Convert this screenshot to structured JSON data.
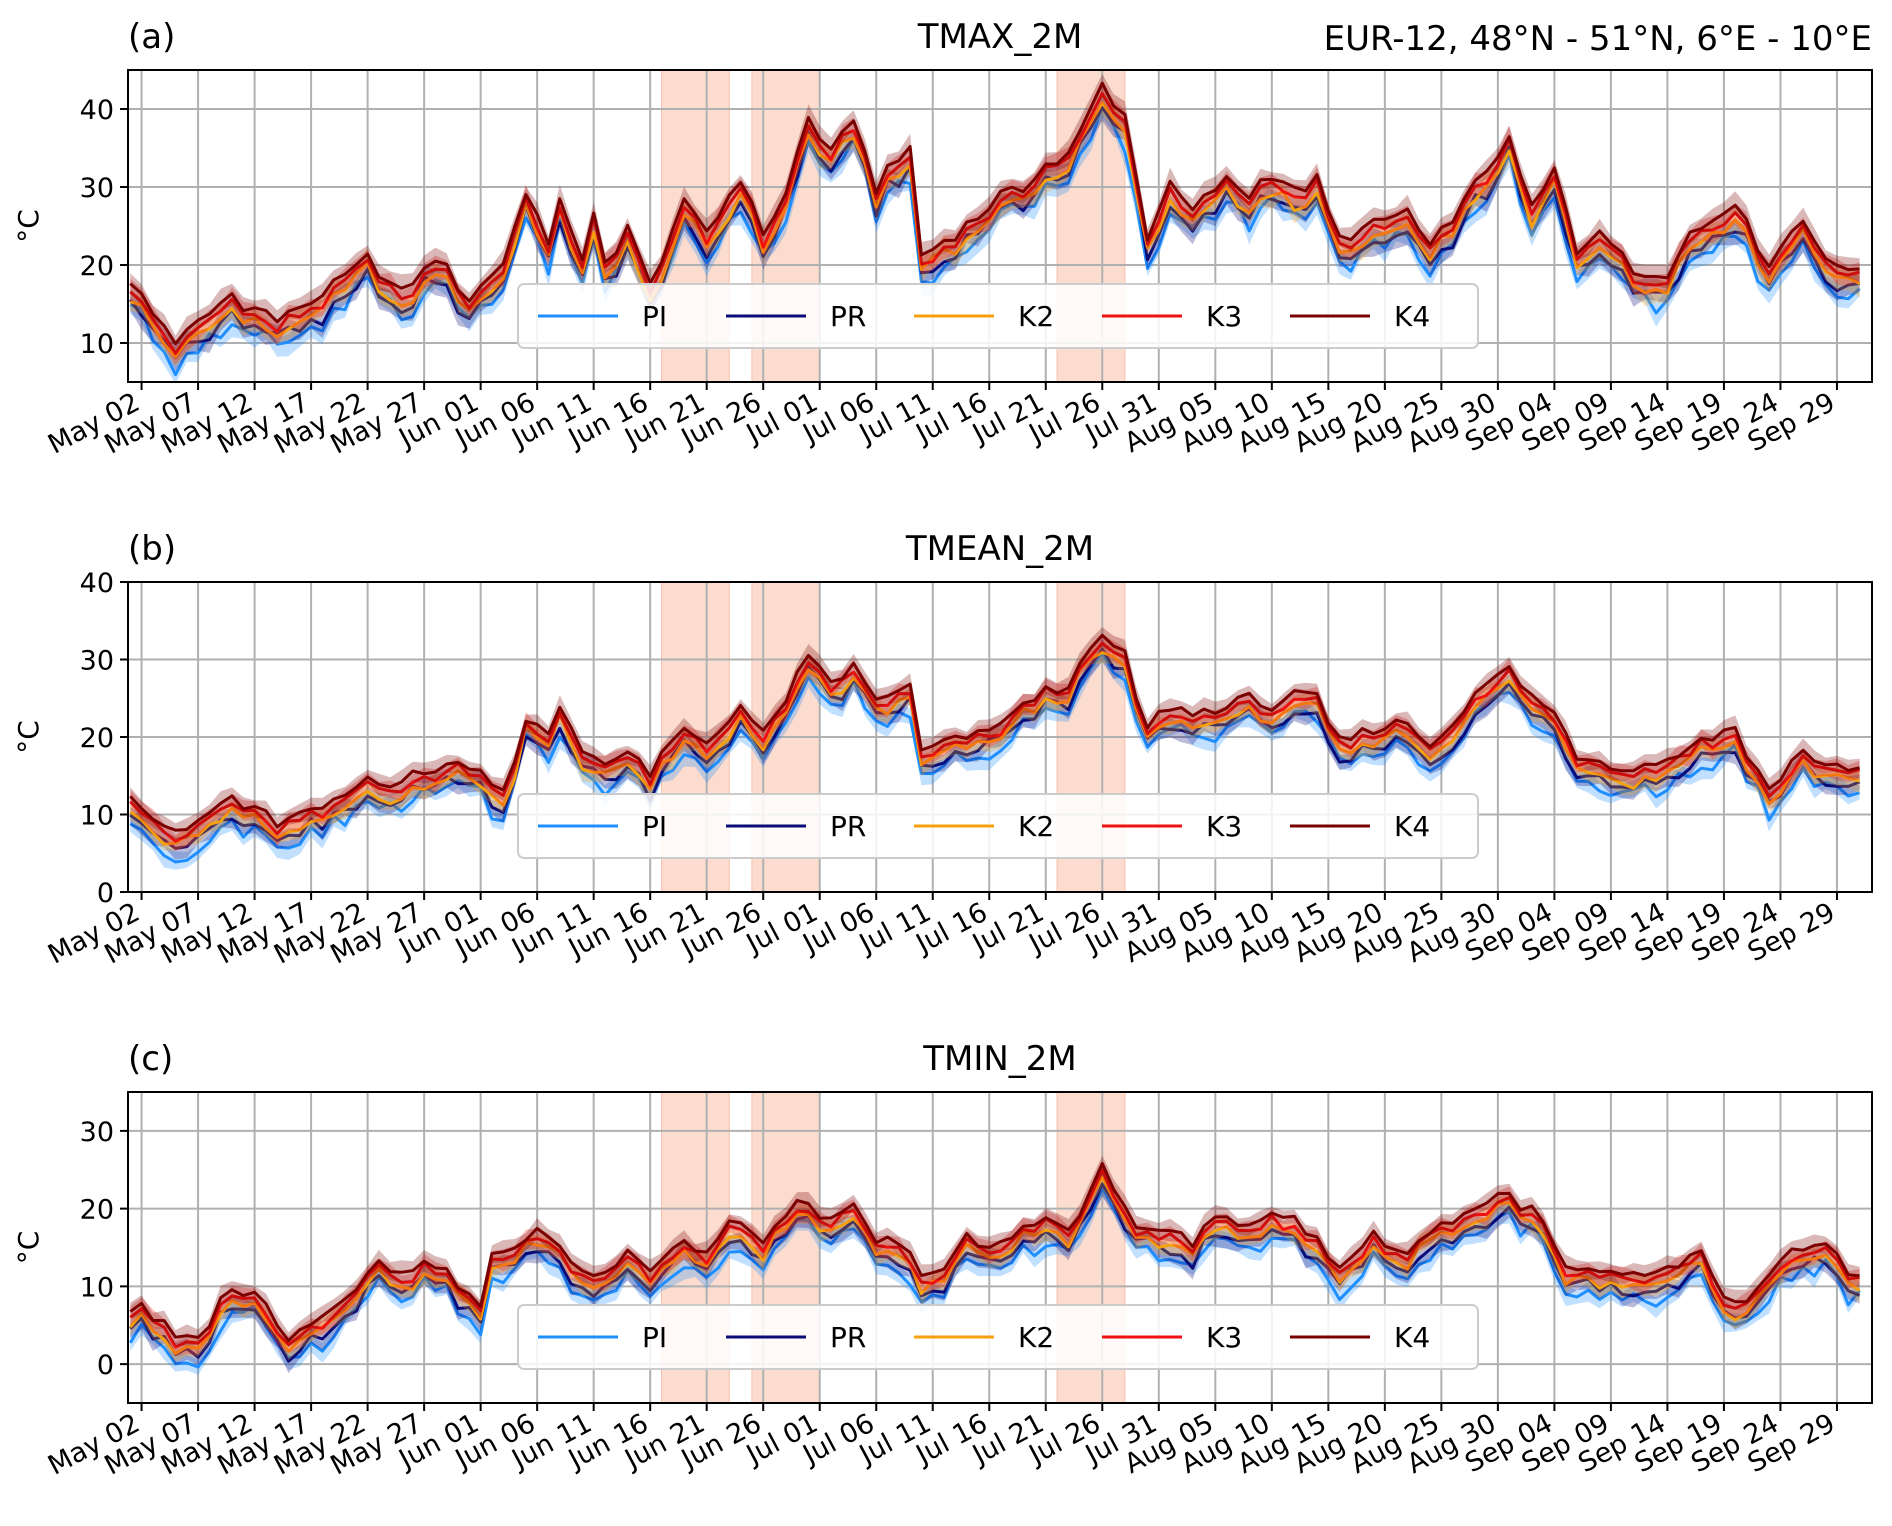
{
  "figure": {
    "region": "EUR-12, 48°N - 51°N, 6°E - 10°E"
  },
  "x_tick_labels": [
    "May 02",
    "May 07",
    "May 12",
    "May 17",
    "May 22",
    "May 27",
    "Jun 01",
    "Jun 06",
    "Jun 11",
    "Jun 16",
    "Jun 21",
    "Jun 26",
    "Jul 01",
    "Jul 06",
    "Jul 11",
    "Jul 16",
    "Jul 21",
    "Jul 26",
    "Jul 31",
    "Aug 05",
    "Aug 10",
    "Aug 15",
    "Aug 20",
    "Aug 25",
    "Aug 30",
    "Sep 04",
    "Sep 09",
    "Sep 14",
    "Sep 19",
    "Sep 24",
    "Sep 29"
  ],
  "legend": [
    {
      "name": "PI",
      "color": "#1f8fff"
    },
    {
      "name": "PR",
      "color": "#0b0b78"
    },
    {
      "name": "K2",
      "color": "#f5a00f"
    },
    {
      "name": "K3",
      "color": "#ee1111"
    },
    {
      "name": "K4",
      "color": "#7a0000"
    }
  ],
  "shading_color": "#f8c0a8",
  "chart_data": [
    {
      "type": "line",
      "panel_label": "(a)",
      "title": "TMAX_2M",
      "ylabel": "°C",
      "ylim": [
        5,
        45
      ],
      "yticks": [
        10,
        20,
        30,
        40
      ],
      "x_start": "2023-05-01",
      "x_end": "2023-09-30",
      "highlight_periods": [
        [
          "2023-06-17",
          "2023-06-23"
        ],
        [
          "2023-06-25",
          "2023-07-01"
        ],
        [
          "2023-07-22",
          "2023-07-28"
        ]
      ],
      "grid": true,
      "legend_position": "lower center",
      "k4_anchors": [
        [
          "2023-05-01",
          18
        ],
        [
          "2023-05-05",
          10
        ],
        [
          "2023-05-10",
          16
        ],
        [
          "2023-05-14",
          13
        ],
        [
          "2023-05-19",
          17
        ],
        [
          "2023-05-22",
          21
        ],
        [
          "2023-05-25",
          16
        ],
        [
          "2023-05-28",
          21
        ],
        [
          "2023-05-31",
          16
        ],
        [
          "2023-06-03",
          20
        ],
        [
          "2023-06-05",
          30
        ],
        [
          "2023-06-07",
          22
        ],
        [
          "2023-06-08",
          29
        ],
        [
          "2023-06-10",
          20
        ],
        [
          "2023-06-11",
          26
        ],
        [
          "2023-06-12",
          20
        ],
        [
          "2023-06-14",
          25
        ],
        [
          "2023-06-16",
          17
        ],
        [
          "2023-06-19",
          28
        ],
        [
          "2023-06-21",
          24
        ],
        [
          "2023-06-24",
          31
        ],
        [
          "2023-06-26",
          24
        ],
        [
          "2023-06-28",
          29
        ],
        [
          "2023-06-30",
          39
        ],
        [
          "2023-07-02",
          34
        ],
        [
          "2023-07-04",
          39
        ],
        [
          "2023-07-06",
          30
        ],
        [
          "2023-07-09",
          35
        ],
        [
          "2023-07-10",
          21
        ],
        [
          "2023-07-14",
          25
        ],
        [
          "2023-07-16",
          28
        ],
        [
          "2023-07-19",
          30
        ],
        [
          "2023-07-21",
          33
        ],
        [
          "2023-07-23",
          34
        ],
        [
          "2023-07-26",
          43
        ],
        [
          "2023-07-28",
          39
        ],
        [
          "2023-07-30",
          24
        ],
        [
          "2023-08-01",
          30
        ],
        [
          "2023-08-03",
          27
        ],
        [
          "2023-08-06",
          31
        ],
        [
          "2023-08-08",
          29
        ],
        [
          "2023-08-10",
          32
        ],
        [
          "2023-08-12",
          29
        ],
        [
          "2023-08-14",
          31
        ],
        [
          "2023-08-16",
          23
        ],
        [
          "2023-08-19",
          25
        ],
        [
          "2023-08-22",
          27
        ],
        [
          "2023-08-24",
          22
        ],
        [
          "2023-08-28",
          30
        ],
        [
          "2023-08-31",
          36
        ],
        [
          "2023-09-02",
          27
        ],
        [
          "2023-09-04",
          32
        ],
        [
          "2023-09-06",
          22
        ],
        [
          "2023-09-08",
          25
        ],
        [
          "2023-09-11",
          19
        ],
        [
          "2023-09-14",
          19
        ],
        [
          "2023-09-16",
          24
        ],
        [
          "2023-09-20",
          28
        ],
        [
          "2023-09-23",
          20
        ],
        [
          "2023-09-26",
          26
        ],
        [
          "2023-09-29",
          19
        ],
        [
          "2023-10-02",
          21
        ],
        [
          "2023-10-05",
          19
        ]
      ],
      "series_offsets": {
        "PI": -3.2,
        "PR": -2.4,
        "K2": -1.8,
        "K3": -0.9,
        "K4": 0
      },
      "band_width": 1.5
    },
    {
      "type": "line",
      "panel_label": "(b)",
      "title": "TMEAN_2M",
      "ylabel": "°C",
      "ylim": [
        0,
        40
      ],
      "yticks": [
        0,
        10,
        20,
        30,
        40
      ],
      "x_start": "2023-05-01",
      "x_end": "2023-09-30",
      "highlight_periods": [
        [
          "2023-06-17",
          "2023-06-23"
        ],
        [
          "2023-06-25",
          "2023-07-01"
        ],
        [
          "2023-07-22",
          "2023-07-28"
        ]
      ],
      "grid": true,
      "legend_position": "lower center",
      "k4_anchors": [
        [
          "2023-05-01",
          13
        ],
        [
          "2023-05-05",
          7
        ],
        [
          "2023-05-10",
          12
        ],
        [
          "2023-05-14",
          9
        ],
        [
          "2023-05-19",
          11
        ],
        [
          "2023-05-22",
          15
        ],
        [
          "2023-05-25",
          14
        ],
        [
          "2023-05-28",
          16
        ],
        [
          "2023-05-31",
          17
        ],
        [
          "2023-06-03",
          13
        ],
        [
          "2023-06-05",
          22
        ],
        [
          "2023-06-07",
          20
        ],
        [
          "2023-06-08",
          24
        ],
        [
          "2023-06-10",
          18
        ],
        [
          "2023-06-12",
          17
        ],
        [
          "2023-06-14",
          18
        ],
        [
          "2023-06-16",
          15
        ],
        [
          "2023-06-19",
          21
        ],
        [
          "2023-06-21",
          19
        ],
        [
          "2023-06-24",
          24
        ],
        [
          "2023-06-26",
          20
        ],
        [
          "2023-06-28",
          25
        ],
        [
          "2023-06-30",
          30
        ],
        [
          "2023-07-02",
          27
        ],
        [
          "2023-07-04",
          29
        ],
        [
          "2023-07-06",
          25
        ],
        [
          "2023-07-09",
          26
        ],
        [
          "2023-07-10",
          18
        ],
        [
          "2023-07-14",
          20
        ],
        [
          "2023-07-16",
          21
        ],
        [
          "2023-07-19",
          24
        ],
        [
          "2023-07-21",
          26
        ],
        [
          "2023-07-23",
          27
        ],
        [
          "2023-07-26",
          33
        ],
        [
          "2023-07-28",
          30
        ],
        [
          "2023-07-30",
          21
        ],
        [
          "2023-08-01",
          24
        ],
        [
          "2023-08-03",
          23
        ],
        [
          "2023-08-06",
          24
        ],
        [
          "2023-08-08",
          25
        ],
        [
          "2023-08-10",
          24
        ],
        [
          "2023-08-12",
          25
        ],
        [
          "2023-08-14",
          25
        ],
        [
          "2023-08-16",
          19
        ],
        [
          "2023-08-19",
          21
        ],
        [
          "2023-08-22",
          22
        ],
        [
          "2023-08-24",
          19
        ],
        [
          "2023-08-28",
          25
        ],
        [
          "2023-08-31",
          29
        ],
        [
          "2023-09-02",
          25
        ],
        [
          "2023-09-04",
          23
        ],
        [
          "2023-09-06",
          18
        ],
        [
          "2023-09-08",
          17
        ],
        [
          "2023-09-11",
          16
        ],
        [
          "2023-09-14",
          17
        ],
        [
          "2023-09-16",
          19
        ],
        [
          "2023-09-20",
          21
        ],
        [
          "2023-09-23",
          13
        ],
        [
          "2023-09-26",
          18
        ],
        [
          "2023-09-29",
          16
        ],
        [
          "2023-10-02",
          17
        ],
        [
          "2023-10-05",
          16
        ]
      ],
      "series_offsets": {
        "PI": -3.0,
        "PR": -2.2,
        "K2": -1.6,
        "K3": -0.8,
        "K4": 0
      },
      "band_width": 1.3
    },
    {
      "type": "line",
      "panel_label": "(c)",
      "title": "TMIN_2M",
      "ylabel": "°C",
      "ylim": [
        -5,
        35
      ],
      "yticks": [
        0,
        10,
        20,
        30
      ],
      "x_start": "2023-05-01",
      "x_end": "2023-09-30",
      "highlight_periods": [
        [
          "2023-06-17",
          "2023-06-23"
        ],
        [
          "2023-06-25",
          "2023-07-01"
        ],
        [
          "2023-07-22",
          "2023-07-28"
        ]
      ],
      "grid": true,
      "legend_position": "lower center",
      "k4_anchors": [
        [
          "2023-05-01",
          7
        ],
        [
          "2023-05-02",
          8
        ],
        [
          "2023-05-05",
          3
        ],
        [
          "2023-05-07",
          3
        ],
        [
          "2023-05-10",
          10
        ],
        [
          "2023-05-12",
          9
        ],
        [
          "2023-05-15",
          4
        ],
        [
          "2023-05-18",
          6
        ],
        [
          "2023-05-20",
          9
        ],
        [
          "2023-05-23",
          13
        ],
        [
          "2023-05-25",
          12
        ],
        [
          "2023-05-28",
          13
        ],
        [
          "2023-05-31",
          9
        ],
        [
          "2023-06-01",
          7
        ],
        [
          "2023-06-02",
          14
        ],
        [
          "2023-06-05",
          16
        ],
        [
          "2023-06-07",
          17
        ],
        [
          "2023-06-09",
          13
        ],
        [
          "2023-06-11",
          11
        ],
        [
          "2023-06-14",
          15
        ],
        [
          "2023-06-16",
          12
        ],
        [
          "2023-06-19",
          16
        ],
        [
          "2023-06-21",
          14
        ],
        [
          "2023-06-23",
          18
        ],
        [
          "2023-06-26",
          16
        ],
        [
          "2023-06-28",
          19
        ],
        [
          "2023-06-30",
          21
        ],
        [
          "2023-07-02",
          18
        ],
        [
          "2023-07-04",
          20
        ],
        [
          "2023-07-06",
          16
        ],
        [
          "2023-07-08",
          15
        ],
        [
          "2023-07-10",
          12
        ],
        [
          "2023-07-12",
          12
        ],
        [
          "2023-07-14",
          16
        ],
        [
          "2023-07-17",
          15
        ],
        [
          "2023-07-19",
          18
        ],
        [
          "2023-07-21",
          19
        ],
        [
          "2023-07-23",
          17
        ],
        [
          "2023-07-26",
          25
        ],
        [
          "2023-07-28",
          20
        ],
        [
          "2023-07-30",
          17
        ],
        [
          "2023-08-01",
          17
        ],
        [
          "2023-08-03",
          16
        ],
        [
          "2023-08-06",
          19
        ],
        [
          "2023-08-08",
          18
        ],
        [
          "2023-08-10",
          20
        ],
        [
          "2023-08-12",
          18
        ],
        [
          "2023-08-14",
          16
        ],
        [
          "2023-08-16",
          12
        ],
        [
          "2023-08-19",
          17
        ],
        [
          "2023-08-21",
          14
        ],
        [
          "2023-08-24",
          17
        ],
        [
          "2023-08-28",
          20
        ],
        [
          "2023-08-31",
          22
        ],
        [
          "2023-09-03",
          18
        ],
        [
          "2023-09-05",
          12
        ],
        [
          "2023-09-07",
          12
        ],
        [
          "2023-09-10",
          11
        ],
        [
          "2023-09-14",
          12
        ],
        [
          "2023-09-17",
          14
        ],
        [
          "2023-09-19",
          8
        ],
        [
          "2023-09-21",
          8
        ],
        [
          "2023-09-25",
          14
        ],
        [
          "2023-09-28",
          15
        ],
        [
          "2023-09-30",
          12
        ],
        [
          "2023-10-02",
          13
        ],
        [
          "2023-10-05",
          11
        ]
      ],
      "series_offsets": {
        "PI": -3.0,
        "PR": -2.1,
        "K2": -1.5,
        "K3": -0.8,
        "K4": 0
      },
      "band_width": 1.3
    }
  ]
}
